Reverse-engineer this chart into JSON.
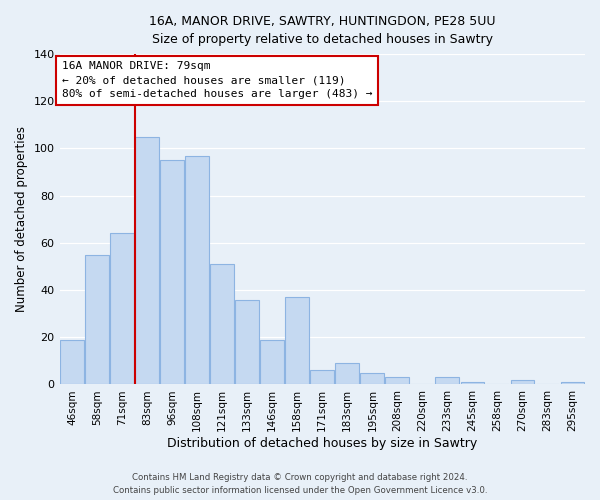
{
  "title1": "16A, MANOR DRIVE, SAWTRY, HUNTINGDON, PE28 5UU",
  "title2": "Size of property relative to detached houses in Sawtry",
  "xlabel": "Distribution of detached houses by size in Sawtry",
  "ylabel": "Number of detached properties",
  "categories": [
    "46sqm",
    "58sqm",
    "71sqm",
    "83sqm",
    "96sqm",
    "108sqm",
    "121sqm",
    "133sqm",
    "146sqm",
    "158sqm",
    "171sqm",
    "183sqm",
    "195sqm",
    "208sqm",
    "220sqm",
    "233sqm",
    "245sqm",
    "258sqm",
    "270sqm",
    "283sqm",
    "295sqm"
  ],
  "values": [
    19,
    55,
    64,
    105,
    95,
    97,
    51,
    36,
    19,
    37,
    6,
    9,
    5,
    3,
    0,
    3,
    1,
    0,
    2,
    0,
    1
  ],
  "bar_color": "#c5d9f1",
  "bar_edge_color": "#8db4e2",
  "vline_color": "#cc0000",
  "annotation_title": "16A MANOR DRIVE: 79sqm",
  "annotation_line1": "← 20% of detached houses are smaller (119)",
  "annotation_line2": "80% of semi-detached houses are larger (483) →",
  "annotation_box_color": "#ffffff",
  "annotation_box_edge": "#cc0000",
  "ylim": [
    0,
    140
  ],
  "yticks": [
    0,
    20,
    40,
    60,
    80,
    100,
    120,
    140
  ],
  "footer1": "Contains HM Land Registry data © Crown copyright and database right 2024.",
  "footer2": "Contains public sector information licensed under the Open Government Licence v3.0.",
  "bg_color": "#e8f0f8",
  "plot_bg_color": "#e8f0f8"
}
